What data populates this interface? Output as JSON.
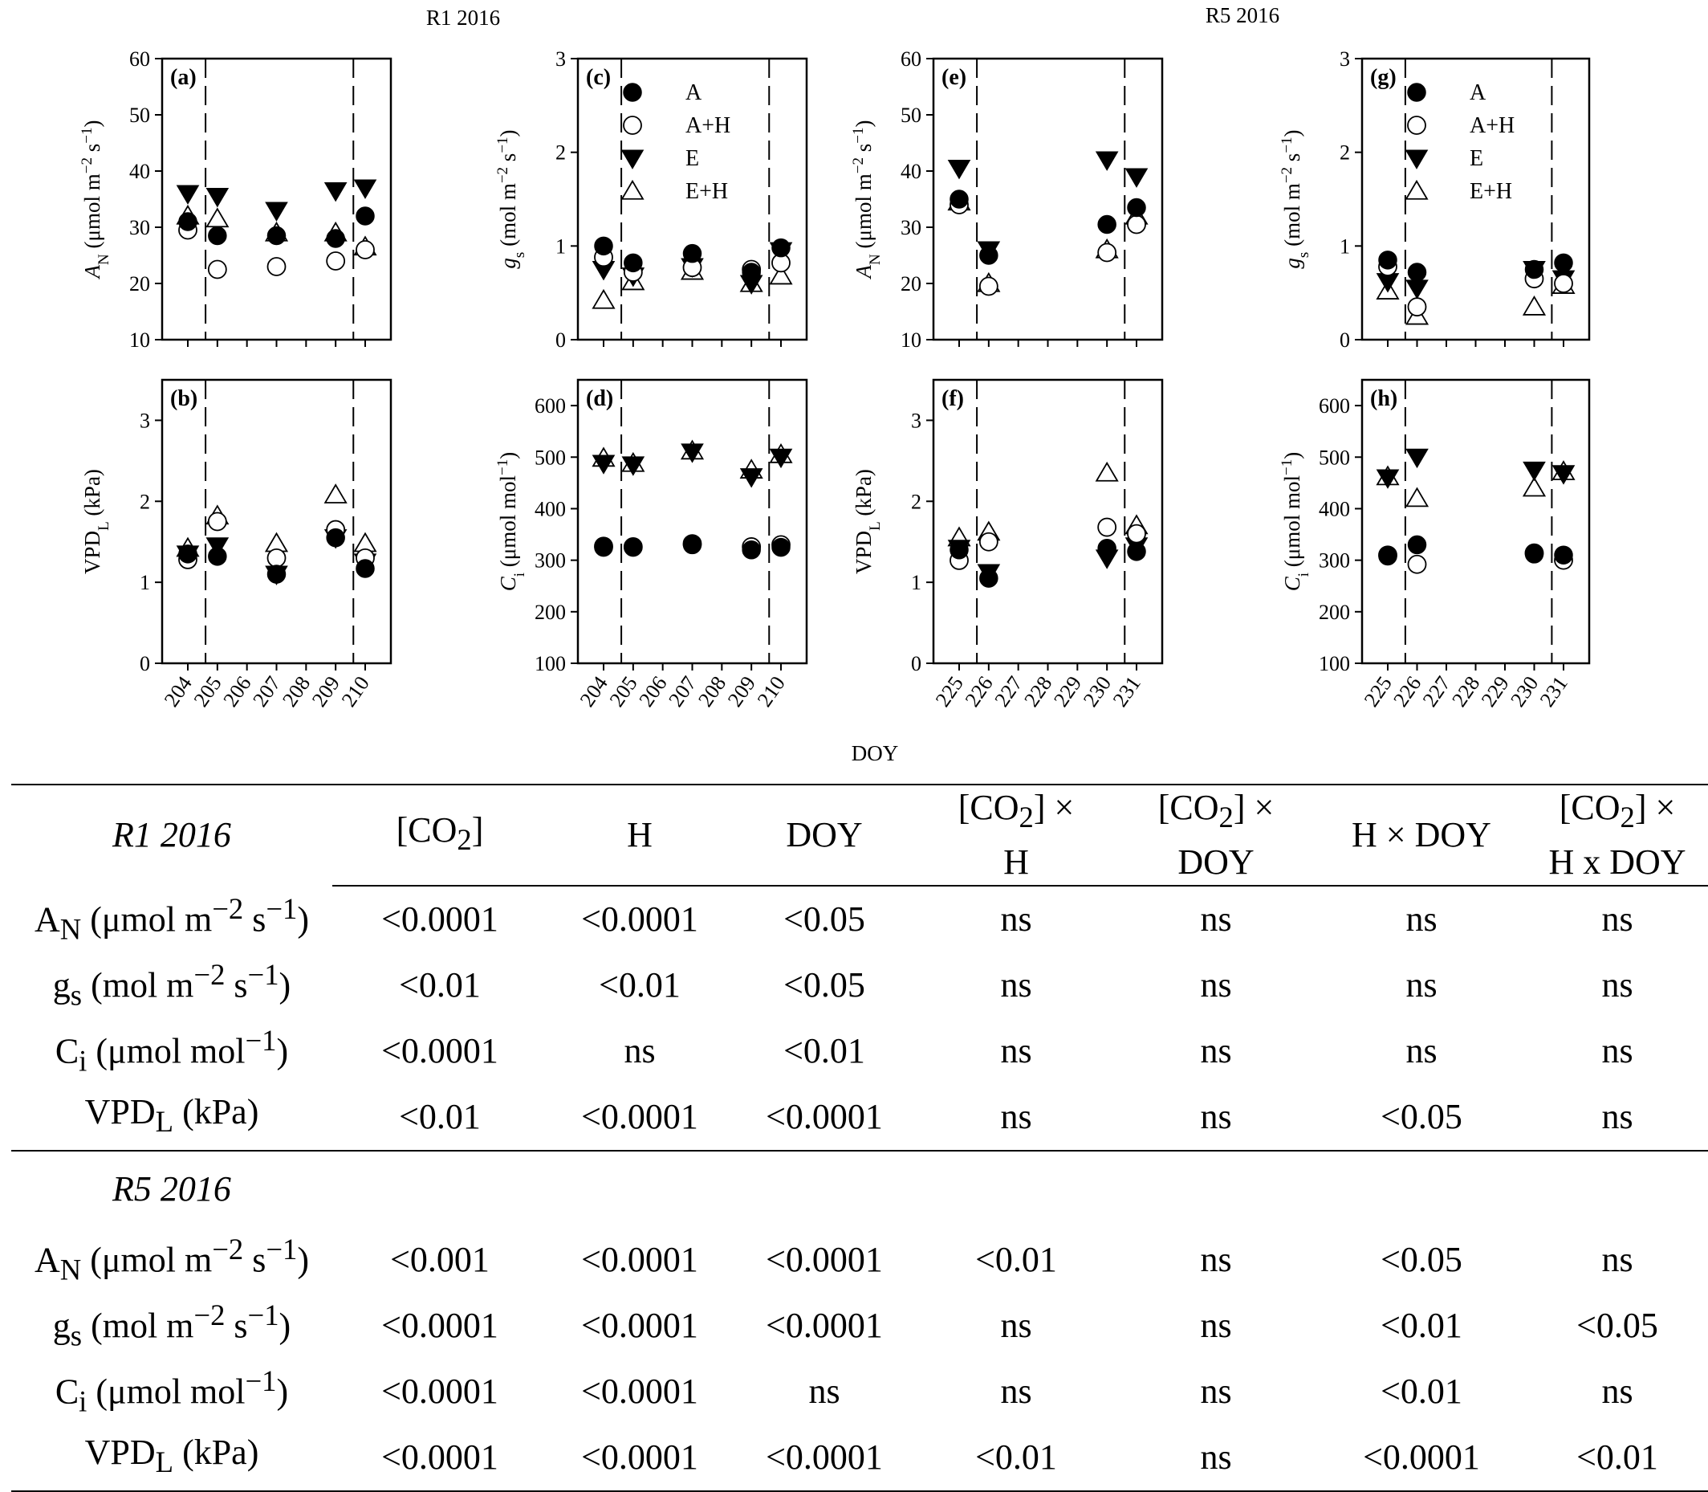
{
  "figure": {
    "header_left": "R1 2016",
    "header_right": "R5 2016",
    "x_axis_title": "DOY"
  },
  "legend": [
    {
      "label": "A",
      "marker": "filled-circle"
    },
    {
      "label": "A+H",
      "marker": "open-circle"
    },
    {
      "label": "E",
      "marker": "filled-triangle-down"
    },
    {
      "label": "E+H",
      "marker": "open-triangle-up"
    }
  ],
  "chart_data": [
    {
      "panel": "(a)",
      "type": "scatter",
      "ylabel": "AN (μmol m−2 s−1)",
      "ylim": [
        10,
        60
      ],
      "yticks": [
        10,
        20,
        30,
        40,
        50,
        60
      ],
      "x": [
        "204",
        "205",
        "206",
        "207",
        "208",
        "209",
        "210"
      ],
      "dashed_x": [
        204.6,
        209.6
      ],
      "series": [
        {
          "name": "A",
          "points": [
            [
              204,
              31
            ],
            [
              205,
              28.5
            ],
            [
              207,
              28.5
            ],
            [
              209,
              28
            ],
            [
              210,
              32
            ]
          ]
        },
        {
          "name": "A+H",
          "points": [
            [
              204,
              29.5
            ],
            [
              205,
              22.5
            ],
            [
              207,
              23
            ],
            [
              209,
              24
            ],
            [
              210,
              26
            ]
          ]
        },
        {
          "name": "E",
          "points": [
            [
              204,
              36
            ],
            [
              205,
              35.5
            ],
            [
              207,
              33
            ],
            [
              209,
              36.5
            ],
            [
              210,
              37
            ]
          ]
        },
        {
          "name": "E+H",
          "points": [
            [
              204,
              32
            ],
            [
              205,
              31.5
            ],
            [
              207,
              29
            ],
            [
              209,
              29
            ],
            [
              210,
              26.5
            ]
          ]
        }
      ]
    },
    {
      "panel": "(b)",
      "type": "scatter",
      "ylabel": "VPDL (kPa)",
      "ylim": [
        0,
        3.5
      ],
      "yticks": [
        0,
        1,
        2,
        3
      ],
      "x": [
        "204",
        "205",
        "206",
        "207",
        "208",
        "209",
        "210"
      ],
      "dashed_x": [
        204.6,
        209.6
      ],
      "series": [
        {
          "name": "A",
          "points": [
            [
              204,
              1.35
            ],
            [
              205,
              1.32
            ],
            [
              207,
              1.1
            ],
            [
              209,
              1.55
            ],
            [
              210,
              1.17
            ]
          ]
        },
        {
          "name": "A+H",
          "points": [
            [
              204,
              1.28
            ],
            [
              205,
              1.75
            ],
            [
              207,
              1.3
            ],
            [
              209,
              1.65
            ],
            [
              210,
              1.3
            ]
          ]
        },
        {
          "name": "E",
          "points": [
            [
              204,
              1.35
            ],
            [
              205,
              1.45
            ],
            [
              207,
              1.1
            ],
            [
              209,
              1.55
            ],
            [
              210,
              1.25
            ]
          ]
        },
        {
          "name": "E+H",
          "points": [
            [
              204,
              1.42
            ],
            [
              205,
              1.82
            ],
            [
              207,
              1.48
            ],
            [
              209,
              2.08
            ],
            [
              210,
              1.48
            ]
          ]
        }
      ]
    },
    {
      "panel": "(c)",
      "type": "scatter",
      "ylabel": "gs (mol m−2 s−1)",
      "ylim": [
        0,
        3
      ],
      "yticks": [
        0,
        1,
        2,
        3
      ],
      "x": [
        "204",
        "205",
        "206",
        "207",
        "208",
        "209",
        "210"
      ],
      "dashed_x": [
        204.6,
        209.6
      ],
      "series": [
        {
          "name": "A",
          "points": [
            [
              204,
              1.0
            ],
            [
              205,
              0.82
            ],
            [
              207,
              0.92
            ],
            [
              209,
              0.72
            ],
            [
              210,
              0.98
            ]
          ]
        },
        {
          "name": "A+H",
          "points": [
            [
              204,
              0.88
            ],
            [
              205,
              0.72
            ],
            [
              207,
              0.77
            ],
            [
              209,
              0.75
            ],
            [
              210,
              0.82
            ]
          ]
        },
        {
          "name": "E",
          "points": [
            [
              204,
              0.75
            ],
            [
              205,
              0.68
            ],
            [
              207,
              0.78
            ],
            [
              209,
              0.6
            ],
            [
              210,
              0.95
            ]
          ]
        },
        {
          "name": "E+H",
          "points": [
            [
              204,
              0.42
            ],
            [
              205,
              0.62
            ],
            [
              207,
              0.73
            ],
            [
              209,
              0.6
            ],
            [
              210,
              0.68
            ]
          ]
        }
      ]
    },
    {
      "panel": "(d)",
      "type": "scatter",
      "ylabel": "Ci (μmol mol−1)",
      "ylim": [
        100,
        650
      ],
      "yticks": [
        100,
        200,
        300,
        400,
        500,
        600
      ],
      "x": [
        "204",
        "205",
        "206",
        "207",
        "208",
        "209",
        "210"
      ],
      "dashed_x": [
        204.6,
        209.6
      ],
      "series": [
        {
          "name": "A",
          "points": [
            [
              204,
              325
            ],
            [
              205,
              325
            ],
            [
              207,
              330
            ],
            [
              209,
              320
            ],
            [
              210,
              325
            ]
          ]
        },
        {
          "name": "A+H",
          "points": [
            [
              204,
              327
            ],
            [
              205,
              326
            ],
            [
              207,
              332
            ],
            [
              209,
              326
            ],
            [
              210,
              330
            ]
          ]
        },
        {
          "name": "E",
          "points": [
            [
              204,
              488
            ],
            [
              205,
              485
            ],
            [
              207,
              510
            ],
            [
              209,
              462
            ],
            [
              210,
              500
            ]
          ]
        },
        {
          "name": "E+H",
          "points": [
            [
              204,
              498
            ],
            [
              205,
              488
            ],
            [
              207,
              512
            ],
            [
              209,
              475
            ],
            [
              210,
              505
            ]
          ]
        }
      ]
    },
    {
      "panel": "(e)",
      "type": "scatter",
      "ylabel": "AN (μmol m−2 s−1)",
      "ylim": [
        10,
        60
      ],
      "yticks": [
        10,
        20,
        30,
        40,
        50,
        60
      ],
      "x": [
        "225",
        "226",
        "227",
        "228",
        "229",
        "230",
        "231"
      ],
      "dashed_x": [
        225.6,
        230.6
      ],
      "series": [
        {
          "name": "A",
          "points": [
            [
              225,
              35
            ],
            [
              226,
              25
            ],
            [
              230,
              30.5
            ],
            [
              231,
              33.5
            ]
          ]
        },
        {
          "name": "A+H",
          "points": [
            [
              225,
              34
            ],
            [
              226,
              19.5
            ],
            [
              230,
              25.5
            ],
            [
              231,
              30.5
            ]
          ]
        },
        {
          "name": "E",
          "points": [
            [
              225,
              40.5
            ],
            [
              226,
              26
            ],
            [
              230,
              42
            ],
            [
              231,
              39
            ]
          ]
        },
        {
          "name": "E+H",
          "points": [
            [
              225,
              34.5
            ],
            [
              226,
              20
            ],
            [
              230,
              26
            ],
            [
              231,
              32
            ]
          ]
        }
      ]
    },
    {
      "panel": "(f)",
      "type": "scatter",
      "ylabel": "VPDL (kPa)",
      "ylim": [
        0,
        3.5
      ],
      "yticks": [
        0,
        1,
        2,
        3
      ],
      "x": [
        "225",
        "226",
        "227",
        "228",
        "229",
        "230",
        "231"
      ],
      "dashed_x": [
        225.6,
        230.6
      ],
      "series": [
        {
          "name": "A",
          "points": [
            [
              225,
              1.4
            ],
            [
              226,
              1.05
            ],
            [
              230,
              1.42
            ],
            [
              231,
              1.38
            ]
          ]
        },
        {
          "name": "A+H",
          "points": [
            [
              225,
              1.27
            ],
            [
              226,
              1.5
            ],
            [
              230,
              1.68
            ],
            [
              231,
              1.6
            ]
          ]
        },
        {
          "name": "E",
          "points": [
            [
              225,
              1.42
            ],
            [
              226,
              1.12
            ],
            [
              230,
              1.3
            ],
            [
              231,
              1.45
            ]
          ]
        },
        {
          "name": "E+H",
          "points": [
            [
              225,
              1.55
            ],
            [
              226,
              1.62
            ],
            [
              230,
              2.35
            ],
            [
              231,
              1.7
            ]
          ]
        }
      ]
    },
    {
      "panel": "(g)",
      "type": "scatter",
      "ylabel": "gs (mol m−2 s−1)",
      "ylim": [
        0,
        3
      ],
      "yticks": [
        0,
        1,
        2,
        3
      ],
      "x": [
        "225",
        "226",
        "227",
        "228",
        "229",
        "230",
        "231"
      ],
      "dashed_x": [
        225.6,
        230.6
      ],
      "series": [
        {
          "name": "A",
          "points": [
            [
              225,
              0.85
            ],
            [
              226,
              0.72
            ],
            [
              230,
              0.75
            ],
            [
              231,
              0.82
            ]
          ]
        },
        {
          "name": "A+H",
          "points": [
            [
              225,
              0.78
            ],
            [
              226,
              0.35
            ],
            [
              230,
              0.65
            ],
            [
              231,
              0.6
            ]
          ]
        },
        {
          "name": "E",
          "points": [
            [
              225,
              0.62
            ],
            [
              226,
              0.55
            ],
            [
              230,
              0.75
            ],
            [
              231,
              0.65
            ]
          ]
        },
        {
          "name": "E+H",
          "points": [
            [
              225,
              0.52
            ],
            [
              226,
              0.25
            ],
            [
              230,
              0.35
            ],
            [
              231,
              0.58
            ]
          ]
        }
      ]
    },
    {
      "panel": "(h)",
      "type": "scatter",
      "ylabel": "Ci (μmol mol−1)",
      "ylim": [
        100,
        650
      ],
      "yticks": [
        100,
        200,
        300,
        400,
        500,
        600
      ],
      "x": [
        "225",
        "226",
        "227",
        "228",
        "229",
        "230",
        "231"
      ],
      "dashed_x": [
        225.6,
        230.6
      ],
      "series": [
        {
          "name": "A",
          "points": [
            [
              225,
              308
            ],
            [
              226,
              330
            ],
            [
              230,
              312
            ],
            [
              231,
              310
            ]
          ]
        },
        {
          "name": "A+H",
          "points": [
            [
              225,
              310
            ],
            [
              226,
              292
            ],
            [
              230,
              314
            ],
            [
              231,
              300
            ]
          ]
        },
        {
          "name": "E",
          "points": [
            [
              225,
              460
            ],
            [
              226,
              500
            ],
            [
              230,
              475
            ],
            [
              231,
              468
            ]
          ]
        },
        {
          "name": "E+H",
          "points": [
            [
              225,
              462
            ],
            [
              226,
              420
            ],
            [
              230,
              440
            ],
            [
              231,
              472
            ]
          ]
        }
      ]
    }
  ],
  "table": {
    "sections": [
      {
        "title": "R1 2016",
        "rows": [
          {
            "label": "AN (μmol m−2 s−1)",
            "values": [
              "<0.0001",
              "<0.0001",
              "<0.05",
              "ns",
              "ns",
              "ns",
              "ns"
            ]
          },
          {
            "label": "gs (mol m−2 s−1)",
            "values": [
              "<0.01",
              "<0.01",
              "<0.05",
              "ns",
              "ns",
              "ns",
              "ns"
            ]
          },
          {
            "label": "Ci (μmol mol−1)",
            "values": [
              "<0.0001",
              "ns",
              "<0.01",
              "ns",
              "ns",
              "ns",
              "ns"
            ]
          },
          {
            "label": "VPDL (kPa)",
            "values": [
              "<0.01",
              "<0.0001",
              "<0.0001",
              "ns",
              "ns",
              "<0.05",
              "ns"
            ]
          }
        ]
      },
      {
        "title": "R5 2016",
        "rows": [
          {
            "label": "AN (μmol m−2 s−1)",
            "values": [
              "<0.001",
              "<0.0001",
              "<0.0001",
              "<0.01",
              "ns",
              "<0.05",
              "ns"
            ]
          },
          {
            "label": "gs (mol m−2 s−1)",
            "values": [
              "<0.0001",
              "<0.0001",
              "<0.0001",
              "ns",
              "ns",
              "<0.01",
              "<0.05"
            ]
          },
          {
            "label": "Ci (μmol mol−1)",
            "values": [
              "<0.0001",
              "<0.0001",
              "ns",
              "ns",
              "ns",
              "<0.01",
              "ns"
            ]
          },
          {
            "label": "VPDL (kPa)",
            "values": [
              "<0.0001",
              "<0.0001",
              "<0.0001",
              "<0.01",
              "ns",
              "<0.0001",
              "<0.01"
            ]
          }
        ]
      }
    ],
    "columns": [
      "[CO2]",
      "H",
      "DOY",
      "[CO2] × H",
      "[CO2] × DOY",
      "H × DOY",
      "[CO2] × H x DOY"
    ]
  }
}
